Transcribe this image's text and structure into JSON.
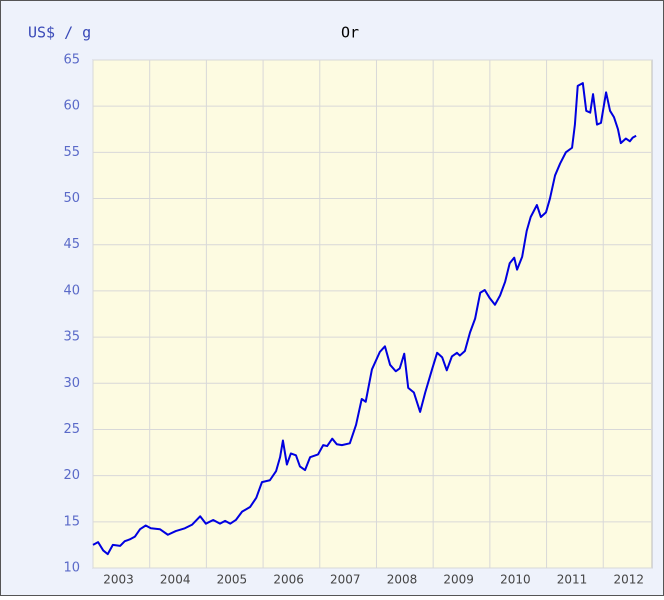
{
  "chart_data": {
    "type": "line",
    "title": "Or",
    "y_label": "US$ / g",
    "x": [
      2003.0,
      2003.09,
      2003.18,
      2003.26,
      2003.35,
      2003.48,
      2003.56,
      2003.65,
      2003.74,
      2003.83,
      2003.93,
      2004.02,
      2004.18,
      2004.32,
      2004.46,
      2004.62,
      2004.75,
      2004.89,
      2004.99,
      2005.12,
      2005.24,
      2005.33,
      2005.42,
      2005.52,
      2005.63,
      2005.77,
      2005.88,
      2005.98,
      2006.12,
      2006.23,
      2006.3,
      2006.35,
      2006.42,
      2006.49,
      2006.58,
      2006.65,
      2006.74,
      2006.83,
      2006.97,
      2007.06,
      2007.13,
      2007.22,
      2007.3,
      2007.39,
      2007.53,
      2007.64,
      2007.74,
      2007.81,
      2007.92,
      2008.06,
      2008.15,
      2008.24,
      2008.34,
      2008.41,
      2008.49,
      2008.56,
      2008.66,
      2008.77,
      2008.86,
      2008.98,
      2009.07,
      2009.16,
      2009.24,
      2009.33,
      2009.42,
      2009.47,
      2009.56,
      2009.65,
      2009.74,
      2009.83,
      2009.91,
      2010.0,
      2010.09,
      2010.18,
      2010.27,
      2010.35,
      2010.43,
      2010.48,
      2010.57,
      2010.65,
      2010.72,
      2010.83,
      2010.9,
      2010.99,
      2011.06,
      2011.15,
      2011.24,
      2011.34,
      2011.45,
      2011.5,
      2011.55,
      2011.64,
      2011.7,
      2011.77,
      2011.82,
      2011.89,
      2011.96,
      2012.05,
      2012.12,
      2012.19,
      2012.26,
      2012.31,
      2012.4,
      2012.47,
      2012.52,
      2012.58
    ],
    "series": [
      {
        "name": "Or",
        "color": "#0000e0",
        "values": [
          12.5,
          12.8,
          11.9,
          11.5,
          12.5,
          12.4,
          12.9,
          13.1,
          13.4,
          14.2,
          14.6,
          14.3,
          14.2,
          13.6,
          14.0,
          14.3,
          14.7,
          15.6,
          14.8,
          15.2,
          14.8,
          15.1,
          14.8,
          15.2,
          16.1,
          16.6,
          17.6,
          19.3,
          19.5,
          20.5,
          22.0,
          23.8,
          21.2,
          22.4,
          22.2,
          21.0,
          20.6,
          22.0,
          22.3,
          23.3,
          23.2,
          24.0,
          23.4,
          23.3,
          23.5,
          25.5,
          28.3,
          28.0,
          31.5,
          33.4,
          34.0,
          32.0,
          31.3,
          31.6,
          33.2,
          29.5,
          29.0,
          26.9,
          29.0,
          31.5,
          33.3,
          32.8,
          31.4,
          32.9,
          33.3,
          33.0,
          33.5,
          35.5,
          37.0,
          39.8,
          40.1,
          39.2,
          38.5,
          39.5,
          41.0,
          43.0,
          43.6,
          42.3,
          43.7,
          46.5,
          48.0,
          49.3,
          48.0,
          48.5,
          50.0,
          52.5,
          53.8,
          55.0,
          55.5,
          58.0,
          62.2,
          62.5,
          59.5,
          59.3,
          61.3,
          58.0,
          58.2,
          61.5,
          59.5,
          58.8,
          57.5,
          56.0,
          56.5,
          56.2,
          56.6,
          56.8
        ]
      }
    ],
    "xlim": [
      2003,
      2012.86
    ],
    "xticks": [
      2003,
      2004,
      2005,
      2006,
      2007,
      2008,
      2009,
      2010,
      2011,
      2012
    ],
    "ylim": [
      10,
      65
    ],
    "yticks": [
      10,
      15,
      20,
      25,
      30,
      35,
      40,
      45,
      50,
      55,
      60,
      65
    ],
    "grid": true
  }
}
